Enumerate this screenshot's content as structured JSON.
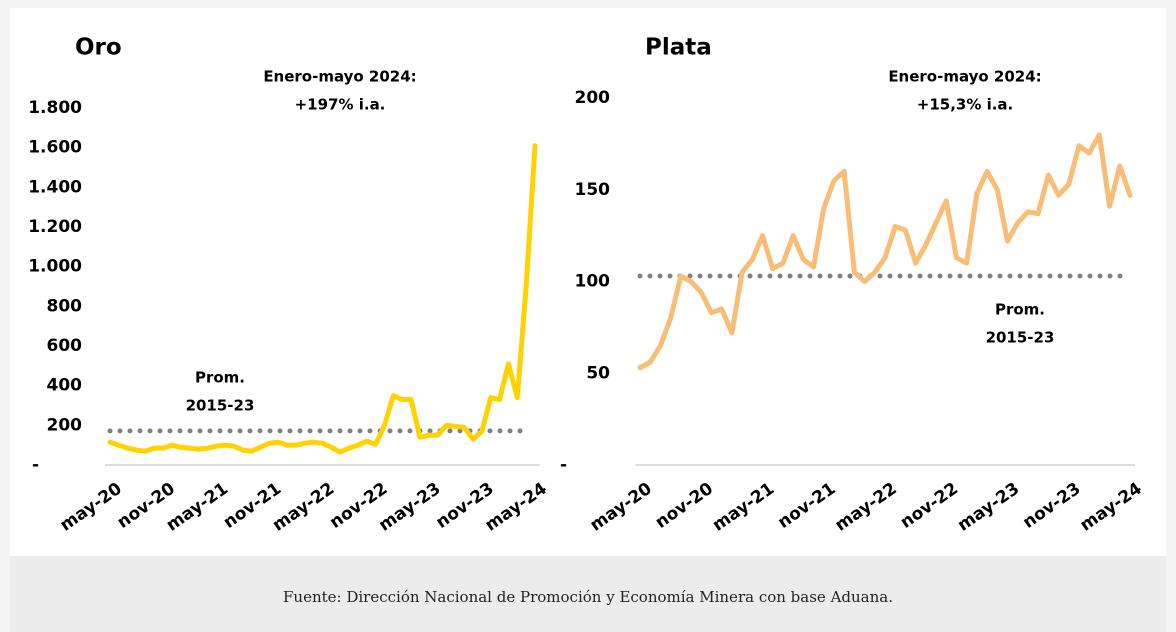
{
  "chart_data": [
    {
      "type": "line",
      "title": "Oro",
      "categories": [
        "may-20",
        null,
        null,
        null,
        null,
        null,
        "nov-20",
        null,
        null,
        null,
        null,
        null,
        "may-21",
        null,
        null,
        null,
        null,
        null,
        "nov-21",
        null,
        null,
        null,
        null,
        null,
        "may-22",
        null,
        null,
        null,
        null,
        null,
        "nov-22",
        null,
        null,
        null,
        null,
        null,
        "may-23",
        null,
        null,
        null,
        null,
        null,
        "nov-23",
        null,
        null,
        null,
        null,
        null,
        "may-24"
      ],
      "values": [
        115,
        100,
        85,
        75,
        70,
        85,
        85,
        100,
        90,
        85,
        80,
        85,
        95,
        100,
        95,
        75,
        70,
        90,
        110,
        115,
        100,
        100,
        110,
        115,
        110,
        90,
        65,
        85,
        100,
        120,
        105,
        200,
        350,
        330,
        330,
        140,
        150,
        150,
        200,
        195,
        190,
        130,
        170,
        340,
        330,
        510,
        340,
        900,
        1610
      ],
      "color": "#ffd200",
      "ylim": [
        0,
        1800
      ],
      "yticks": [
        {
          "value": 0,
          "label": "-"
        },
        200,
        400,
        600,
        800,
        {
          "value": 1000,
          "label": "1.000"
        },
        {
          "value": 1200,
          "label": "1.200"
        },
        {
          "value": 1400,
          "label": "1.400"
        },
        {
          "value": 1600,
          "label": "1.600"
        },
        {
          "value": 1800,
          "label": "1.800"
        }
      ],
      "reference_line": {
        "value": 172,
        "label": [
          "Prom.",
          "2015-23"
        ],
        "color": "#808080"
      },
      "annotation": [
        "Enero-mayo 2024:",
        "+197% i.a."
      ]
    },
    {
      "type": "line",
      "title": "Plata",
      "categories": [
        "may-20",
        null,
        null,
        null,
        null,
        null,
        "nov-20",
        null,
        null,
        null,
        null,
        null,
        "may-21",
        null,
        null,
        null,
        null,
        null,
        "nov-21",
        null,
        null,
        null,
        null,
        null,
        "may-22",
        null,
        null,
        null,
        null,
        null,
        "nov-22",
        null,
        null,
        null,
        null,
        null,
        "may-23",
        null,
        null,
        null,
        null,
        null,
        "nov-23",
        null,
        null,
        null,
        null,
        null,
        "may-24"
      ],
      "values": [
        53,
        56,
        65,
        80,
        103,
        100,
        94,
        83,
        85,
        72,
        105,
        112,
        125,
        107,
        110,
        125,
        112,
        108,
        140,
        155,
        160,
        105,
        100,
        105,
        113,
        130,
        128,
        110,
        120,
        132,
        144,
        113,
        110,
        148,
        160,
        150,
        122,
        132,
        138,
        137,
        158,
        147,
        153,
        174,
        170,
        180,
        141,
        163,
        147
      ],
      "color": "#f8be78",
      "ylim": [
        0,
        200
      ],
      "yticks": [
        {
          "value": 0,
          "label": "-"
        },
        50,
        100,
        150,
        200
      ],
      "reference_line": {
        "value": 103,
        "label": [
          "Prom.",
          "2015-23"
        ],
        "color": "#808080"
      },
      "annotation": [
        "Enero-mayo 2024:",
        "+15,3% i.a."
      ]
    }
  ],
  "source": "Fuente: Dirección Nacional de Promoción y Economía Minera con base Aduana."
}
